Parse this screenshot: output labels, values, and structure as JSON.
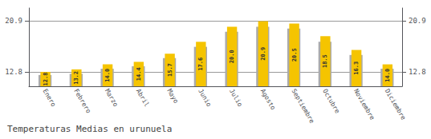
{
  "chart_data": {
    "type": "bar",
    "title": "Temperaturas Medias en urunuela",
    "categories": [
      "Enero",
      "Febrero",
      "Marzo",
      "Abril",
      "Mayo",
      "Junio",
      "Julio",
      "Agosto",
      "Septiembre",
      "Octubre",
      "Noviembre",
      "Diciembre"
    ],
    "series": [
      {
        "color": "#AAAAAA",
        "values": [
          12.3,
          12.5,
          13.3,
          13.7,
          15.0,
          16.8,
          19.2,
          20.0,
          19.7,
          17.6,
          15.5,
          13.3
        ]
      },
      {
        "color": "#F5C400",
        "values": [
          12.8,
          13.2,
          14.0,
          14.4,
          15.7,
          17.6,
          20.0,
          20.9,
          20.5,
          18.5,
          16.3,
          14.0
        ],
        "data_labels": true,
        "value_labels": [
          "12.8",
          "13.2",
          "14.0",
          "14.4",
          "15.7",
          "17.6",
          "20.0",
          "20.9",
          "20.5",
          "18.5",
          "16.3",
          "14.0"
        ]
      }
    ],
    "ylim": [
      10.5,
      23.0
    ],
    "yticks": [
      12.8,
      20.9
    ],
    "y2lim": [
      10.5,
      23.0
    ],
    "y2ticks": [
      12.8,
      20.9
    ],
    "grid": true
  }
}
